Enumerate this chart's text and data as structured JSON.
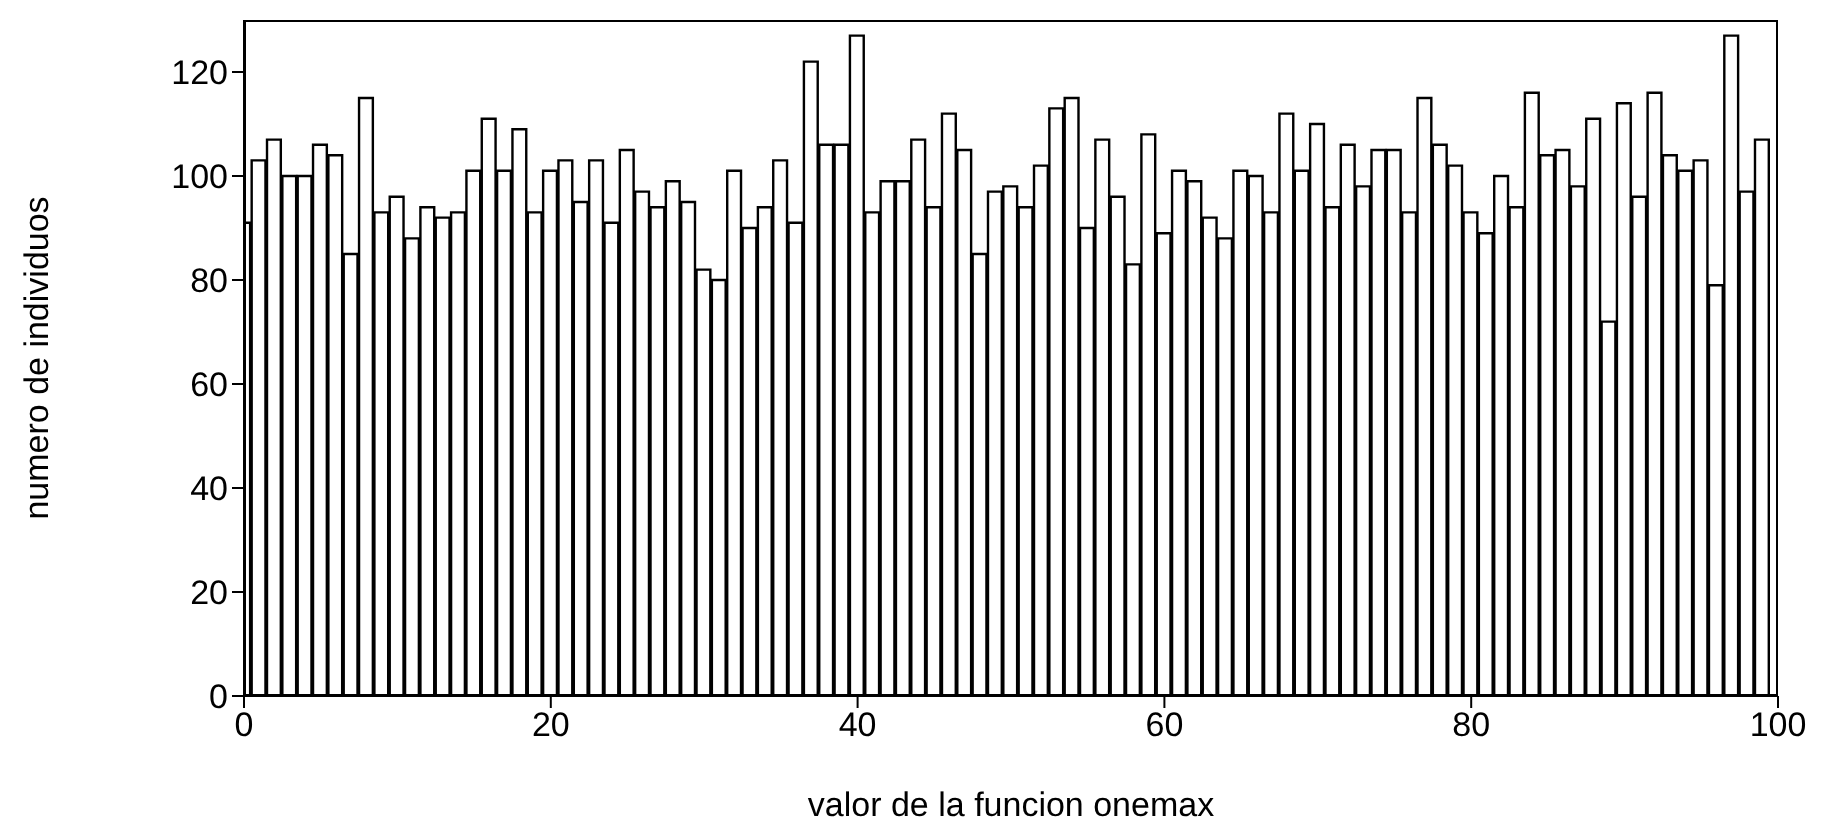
{
  "chart_data": {
    "type": "bar",
    "xlabel": "valor de la funcion onemax",
    "ylabel": "numero de individuos",
    "x": [
      0,
      1,
      2,
      3,
      4,
      5,
      6,
      7,
      8,
      9,
      10,
      11,
      12,
      13,
      14,
      15,
      16,
      17,
      18,
      19,
      20,
      21,
      22,
      23,
      24,
      25,
      26,
      27,
      28,
      29,
      30,
      31,
      32,
      33,
      34,
      35,
      36,
      37,
      38,
      39,
      40,
      41,
      42,
      43,
      44,
      45,
      46,
      47,
      48,
      49,
      50,
      51,
      52,
      53,
      54,
      55,
      56,
      57,
      58,
      59,
      60,
      61,
      62,
      63,
      64,
      65,
      66,
      67,
      68,
      69,
      70,
      71,
      72,
      73,
      74,
      75,
      76,
      77,
      78,
      79,
      80,
      81,
      82,
      83,
      84,
      85,
      86,
      87,
      88,
      89,
      90,
      91,
      92,
      93,
      94,
      95,
      96,
      97,
      98,
      99
    ],
    "values": [
      91,
      103,
      107,
      100,
      100,
      106,
      104,
      85,
      115,
      93,
      96,
      88,
      94,
      92,
      93,
      101,
      111,
      101,
      109,
      93,
      101,
      103,
      95,
      103,
      91,
      105,
      97,
      94,
      99,
      95,
      82,
      80,
      101,
      90,
      94,
      103,
      91,
      122,
      106,
      106,
      127,
      93,
      99,
      99,
      107,
      94,
      112,
      105,
      85,
      97,
      98,
      94,
      102,
      113,
      115,
      90,
      107,
      96,
      83,
      108,
      89,
      101,
      99,
      92,
      88,
      101,
      100,
      93,
      112,
      101,
      110,
      94,
      106,
      98,
      105,
      105,
      93,
      115,
      106,
      102,
      93,
      89,
      100,
      94,
      116,
      104,
      105,
      98,
      111,
      72,
      114,
      96,
      116,
      104,
      101,
      103,
      79,
      127,
      97,
      107
    ],
    "color": "#000000",
    "xlim": [
      0,
      100
    ],
    "xticks": [
      0,
      20,
      40,
      60,
      80,
      100
    ],
    "ylim": [
      0,
      130
    ],
    "yticks": [
      0,
      20,
      40,
      60,
      80,
      100,
      120
    ],
    "grid": false
  }
}
